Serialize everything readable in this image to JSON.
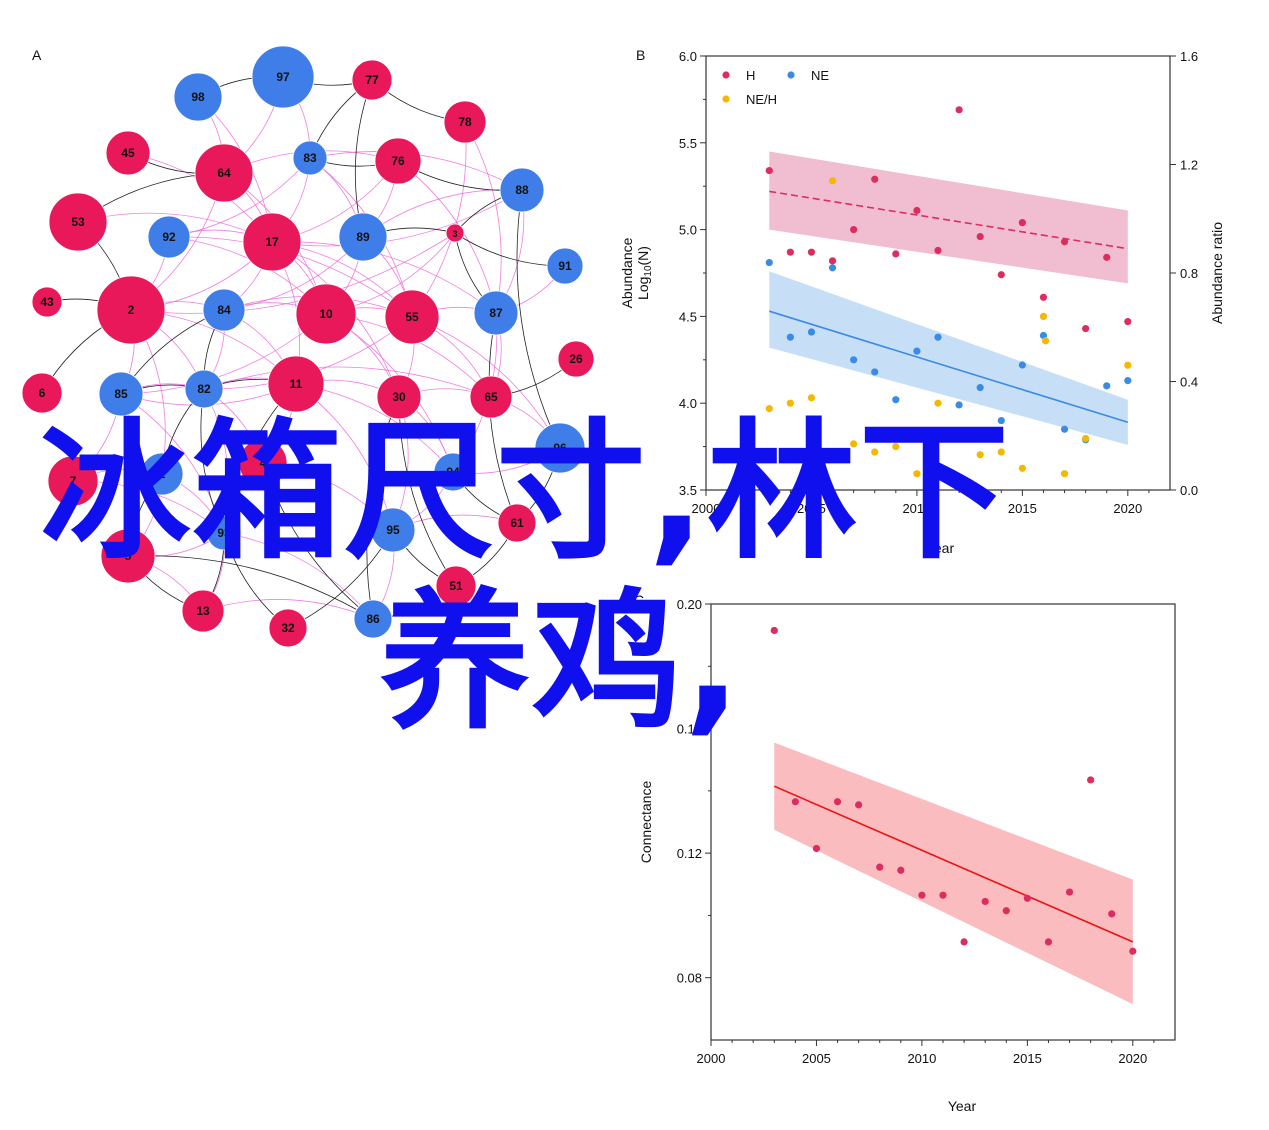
{
  "overlay": {
    "line1": "冰箱尺寸,林下",
    "line2": "养鸡,"
  },
  "chart_data": [
    {
      "panel": "A",
      "type": "network",
      "colors": {
        "red": "#e8185a",
        "blue": "#3f7ee8",
        "edge_pink": "#ee66dd",
        "edge_black": "#222222"
      },
      "nodes": [
        {
          "id": "97",
          "c": "blue"
        },
        {
          "id": "77",
          "c": "red"
        },
        {
          "id": "98",
          "c": "blue"
        },
        {
          "id": "78",
          "c": "red"
        },
        {
          "id": "45",
          "c": "red"
        },
        {
          "id": "64",
          "c": "red"
        },
        {
          "id": "83",
          "c": "blue"
        },
        {
          "id": "76",
          "c": "red"
        },
        {
          "id": "88",
          "c": "blue"
        },
        {
          "id": "53",
          "c": "red"
        },
        {
          "id": "92",
          "c": "blue"
        },
        {
          "id": "17",
          "c": "red"
        },
        {
          "id": "89",
          "c": "blue"
        },
        {
          "id": "3",
          "c": "red"
        },
        {
          "id": "91",
          "c": "blue"
        },
        {
          "id": "43",
          "c": "red"
        },
        {
          "id": "2",
          "c": "red"
        },
        {
          "id": "84",
          "c": "blue"
        },
        {
          "id": "10",
          "c": "red"
        },
        {
          "id": "55",
          "c": "red"
        },
        {
          "id": "87",
          "c": "blue"
        },
        {
          "id": "26",
          "c": "red"
        },
        {
          "id": "6",
          "c": "red"
        },
        {
          "id": "85",
          "c": "blue"
        },
        {
          "id": "82",
          "c": "blue"
        },
        {
          "id": "11",
          "c": "red"
        },
        {
          "id": "30",
          "c": "red"
        },
        {
          "id": "65",
          "c": "red"
        },
        {
          "id": "96",
          "c": "blue"
        },
        {
          "id": "7",
          "c": "red"
        },
        {
          "id": "1",
          "c": "blue"
        },
        {
          "id": "4",
          "c": "red"
        },
        {
          "id": "94",
          "c": "blue"
        },
        {
          "id": "93",
          "c": "blue"
        },
        {
          "id": "95",
          "c": "blue"
        },
        {
          "id": "61",
          "c": "red"
        },
        {
          "id": "5",
          "c": "red"
        },
        {
          "id": "51",
          "c": "red"
        },
        {
          "id": "13",
          "c": "red"
        },
        {
          "id": "32",
          "c": "red"
        },
        {
          "id": "86",
          "c": "blue"
        }
      ]
    },
    {
      "panel": "B",
      "type": "scatter",
      "xlabel": "Year",
      "ylabel": "Abundance Log10(N)",
      "ylabel_right": "Abundance ratio",
      "xlim": [
        2000,
        2022
      ],
      "ylim": [
        3.5,
        6.0
      ],
      "ylim_right": [
        0.0,
        1.6
      ],
      "x_ticks": [
        "2000",
        "2005",
        "2010",
        "2015",
        "2020"
      ],
      "y_ticks": [
        "3.5",
        "4.0",
        "4.5",
        "5.0",
        "5.5",
        "6.0"
      ],
      "y_ticks_right": [
        "0.0",
        "0.4",
        "0.8",
        "1.2",
        "1.6"
      ],
      "legend": [
        "H",
        "NE",
        "NE/H"
      ],
      "legend_position": "top-left",
      "colors": {
        "H": "#dd2d60",
        "NE": "#3a8be6",
        "NE/H": "#f5b800",
        "H_band": "#eeb2c8",
        "NE_band": "#bcd9f6"
      },
      "series": [
        {
          "name": "H",
          "points": [
            [
              2003,
              5.34
            ],
            [
              2004,
              4.87
            ],
            [
              2005,
              4.87
            ],
            [
              2006,
              4.82
            ],
            [
              2007,
              5.0
            ],
            [
              2008,
              5.29
            ],
            [
              2009,
              4.86
            ],
            [
              2010,
              5.11
            ],
            [
              2011,
              4.88
            ],
            [
              2012,
              5.69
            ],
            [
              2013,
              4.96
            ],
            [
              2014,
              4.74
            ],
            [
              2015,
              5.04
            ],
            [
              2016,
              4.61
            ],
            [
              2017,
              4.93
            ],
            [
              2018,
              4.43
            ],
            [
              2019,
              4.84
            ],
            [
              2020,
              4.47
            ]
          ],
          "trend": [
            [
              2003,
              5.22
            ],
            [
              2020,
              4.89
            ]
          ],
          "band_upper": [
            [
              2003,
              5.45
            ],
            [
              2020,
              5.11
            ]
          ],
          "band_lower": [
            [
              2003,
              5.0
            ],
            [
              2020,
              4.69
            ]
          ]
        },
        {
          "name": "NE",
          "points": [
            [
              2003,
              4.81
            ],
            [
              2004,
              4.38
            ],
            [
              2005,
              4.41
            ],
            [
              2006,
              4.78
            ],
            [
              2007,
              4.25
            ],
            [
              2008,
              4.18
            ],
            [
              2009,
              4.02
            ],
            [
              2010,
              4.3
            ],
            [
              2011,
              4.38
            ],
            [
              2012,
              3.99
            ],
            [
              2013,
              4.09
            ],
            [
              2014,
              3.9
            ],
            [
              2015,
              4.22
            ],
            [
              2016,
              4.39
            ],
            [
              2017,
              3.85
            ],
            [
              2018,
              3.79
            ],
            [
              2019,
              4.1
            ],
            [
              2020,
              4.13
            ]
          ],
          "trend": [
            [
              2003,
              4.53
            ],
            [
              2020,
              3.89
            ]
          ],
          "band_upper": [
            [
              2003,
              4.76
            ],
            [
              2020,
              4.02
            ]
          ],
          "band_lower": [
            [
              2003,
              4.32
            ],
            [
              2020,
              3.76
            ]
          ]
        },
        {
          "name": "NE/H",
          "points": [
            [
              2003,
              0.3
            ],
            [
              2004,
              0.32
            ],
            [
              2005,
              0.34
            ],
            [
              2006,
              1.14
            ],
            [
              2007,
              0.17
            ],
            [
              2008,
              0.14
            ],
            [
              2009,
              0.16
            ],
            [
              2010,
              0.06
            ],
            [
              2011,
              0.32
            ],
            [
              2012,
              0.02
            ],
            [
              2013,
              0.13
            ],
            [
              2014,
              0.14
            ],
            [
              2015,
              0.08
            ],
            [
              2016,
              0.64
            ],
            [
              2016.1,
              0.55
            ],
            [
              2017,
              0.06
            ],
            [
              2018,
              0.19
            ],
            [
              2020,
              0.46
            ]
          ]
        }
      ]
    },
    {
      "panel": "C",
      "type": "scatter",
      "xlabel": "Year",
      "ylabel": "Connectance",
      "xlim": [
        2000,
        2022
      ],
      "ylim": [
        0.06,
        0.2
      ],
      "x_ticks": [
        "2000",
        "2005",
        "2010",
        "2015",
        "2020"
      ],
      "y_ticks": [
        "0.08",
        "0.12",
        "0.16",
        "0.20"
      ],
      "colors": {
        "points": "#dd2d60",
        "trend": "#ee1111",
        "band": "#f9b0b4"
      },
      "series": [
        {
          "name": "",
          "points": [
            [
              2003,
              0.1915
            ],
            [
              2004,
              0.1365
            ],
            [
              2005,
              0.1215
            ],
            [
              2006,
              0.1365
            ],
            [
              2007,
              0.1355
            ],
            [
              2008,
              0.1155
            ],
            [
              2009,
              0.1145
            ],
            [
              2010,
              0.1065
            ],
            [
              2011,
              0.1065
            ],
            [
              2012,
              0.0915
            ],
            [
              2013,
              0.1045
            ],
            [
              2014,
              0.1015
            ],
            [
              2015,
              0.1055
            ],
            [
              2016,
              0.0915
            ],
            [
              2017,
              0.1075
            ],
            [
              2018,
              0.1435
            ],
            [
              2019,
              0.1005
            ],
            [
              2020,
              0.0885
            ]
          ],
          "trend": [
            [
              2003,
              0.1415
            ],
            [
              2020,
              0.0915
            ]
          ],
          "band_upper": [
            [
              2003,
              0.1555
            ],
            [
              2020,
              0.1115
            ]
          ],
          "band_lower": [
            [
              2003,
              0.1275
            ],
            [
              2020,
              0.0715
            ]
          ]
        }
      ]
    }
  ]
}
